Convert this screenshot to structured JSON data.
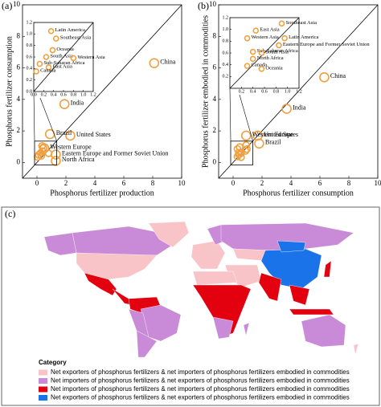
{
  "chart_data": [
    {
      "type": "scatter",
      "panel_label": "(a)",
      "x_label": "Phosphorus fertilizer production",
      "y_label": "Phosphorus fertilizer consumption",
      "xlim": [
        -1,
        10
      ],
      "ylim": [
        -1,
        10
      ],
      "xticks": [
        0,
        2,
        4,
        6,
        8,
        10
      ],
      "yticks": [
        0,
        2,
        4,
        6,
        8,
        10
      ],
      "color": "#f0a040",
      "point_labels": [
        "China",
        "India",
        "United States",
        "Brazil",
        "Western Europe",
        "Eastern Europe and Former Soviet Union",
        "North Africa"
      ],
      "x": [
        8.1,
        1.9,
        2.3,
        0.9,
        0.5,
        1.3,
        1.3
      ],
      "values": [
        6.3,
        3.7,
        1.7,
        1.8,
        0.9,
        0.5,
        0.1
      ],
      "inset": {
        "type": "scatter",
        "xlim": [
          0,
          1.2
        ],
        "ylim": [
          0,
          1.2
        ],
        "xticks": [
          {
            "value": 0,
            "label": "0.0"
          },
          0.2,
          0.4,
          0.6,
          0.8,
          {
            "value": 1,
            "label": "1.0"
          },
          1.2
        ],
        "yticks": [
          {
            "value": 0,
            "label": "0.0"
          },
          0.2,
          0.4,
          0.6,
          0.8,
          {
            "value": 1,
            "label": "1.0"
          },
          1.2
        ],
        "point_labels": [
          "Latin America",
          "Southeast Asia",
          "Oceania",
          "South Asia",
          "Western Asia",
          "Sub-Saharan Africa",
          "East Asia",
          "Canada"
        ],
        "x": [
          0.35,
          0.45,
          0.38,
          0.25,
          0.8,
          0.12,
          0.3,
          0.05
        ],
        "values": [
          1.05,
          0.92,
          0.72,
          0.6,
          0.58,
          0.48,
          0.42,
          0.35
        ]
      }
    },
    {
      "type": "scatter",
      "panel_label": "(b)",
      "x_label": "Phosphorus fertilizer consumption",
      "y_label": "Phosphorus fertilizer embodied in commodities",
      "xlim": [
        -1,
        10
      ],
      "ylim": [
        -1,
        10
      ],
      "xticks": [
        0,
        2,
        4,
        6,
        8,
        10
      ],
      "yticks": [
        0,
        2,
        4,
        6,
        8,
        10
      ],
      "color": "#f0a040",
      "point_labels": [
        "China",
        "India",
        "United States",
        "Western Europe",
        "Brazil"
      ],
      "x": [
        6.3,
        3.7,
        1.7,
        0.9,
        1.8
      ],
      "values": [
        5.4,
        3.4,
        1.7,
        1.7,
        1.2
      ],
      "inset": {
        "type": "scatter",
        "xlim": [
          0,
          1.2
        ],
        "ylim": [
          0,
          1.2
        ],
        "xticks": [
          0.2,
          0.4,
          0.6,
          0.8,
          {
            "value": 1,
            "label": "1.0"
          },
          1.2
        ],
        "yticks": [
          0.2,
          0.4,
          0.6,
          0.8,
          {
            "value": 1,
            "label": "1.0"
          },
          1.2
        ],
        "point_labels": [
          "Southeast Asia",
          "East Asia",
          "Western Asia",
          "Latin America",
          "Eastern Europe and Former Soviet Union",
          "Sub-Saharan Africa",
          "South Asia",
          "North Africa",
          "Canada",
          "Oceania"
        ],
        "x": [
          0.9,
          0.45,
          0.3,
          0.95,
          0.85,
          0.4,
          0.55,
          0.4,
          0.3,
          0.55
        ],
        "values": [
          1.1,
          0.98,
          0.85,
          0.85,
          0.73,
          0.62,
          0.6,
          0.5,
          0.38,
          0.33
        ]
      }
    }
  ],
  "map": {
    "panel_label": "(c)",
    "legend_title": "Category",
    "legend": [
      {
        "label": "Net exporters of phosphorus fertilizers & net importers of phosphorus fertilizers embodied in commodities",
        "color": "#f8c4c8"
      },
      {
        "label": "Net importers of phosphorus fertilizers & net exporters of phosphorus fertilizers embodied in commodities",
        "color": "#c98ad8"
      },
      {
        "label": "Net importers of phosphorus fertilizers & net importers of phosphorus fertilizers embodied in commodities",
        "color": "#e3000f"
      },
      {
        "label": "Net exporters of phosphorus fertilizers & net exporters of phosphorus fertilizers embodied in commodities",
        "color": "#1a73e8"
      }
    ]
  }
}
